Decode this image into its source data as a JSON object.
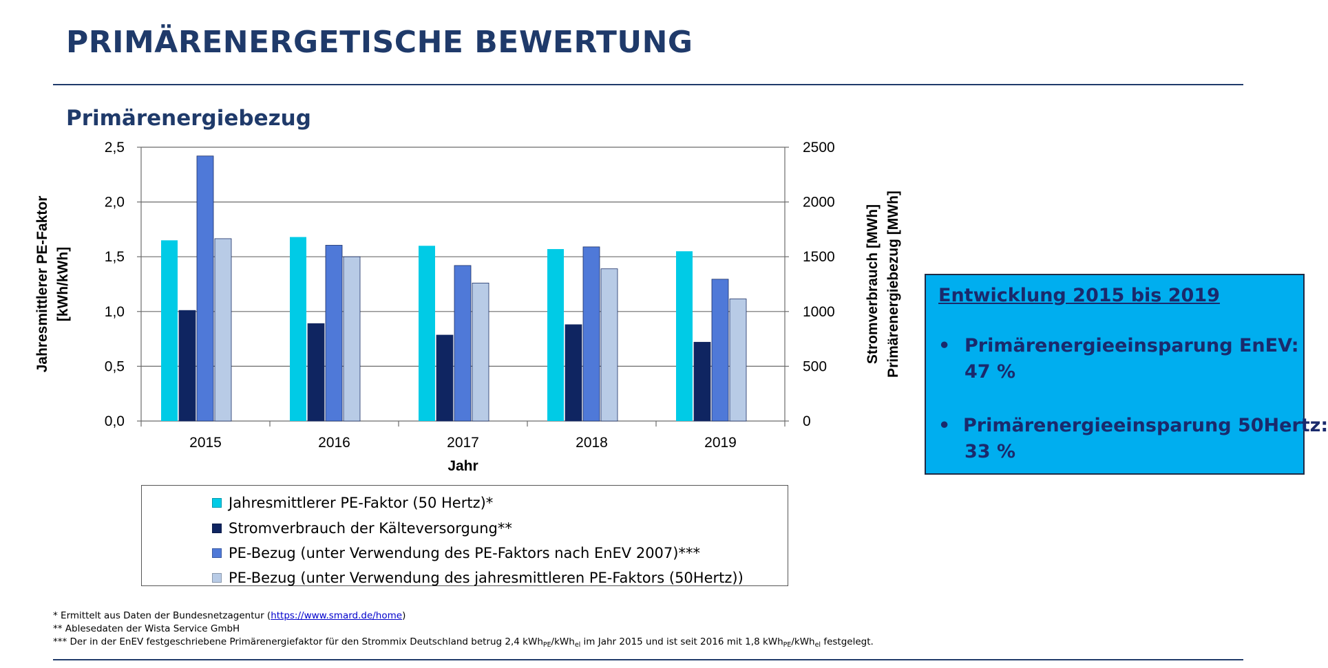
{
  "header": {
    "title": "PRIMÄRENERGETISCHE BEWERTUNG",
    "subtitle": "Primärenergiebezug"
  },
  "chart_data": {
    "type": "bar",
    "xlabel": "Jahr",
    "ylabel_left": "Jahresmittlerer PE-Faktor",
    "ylabel_left_unit": "[kWh_PE/kWh_el]",
    "ylabel_right_1": "Stromverbrauch [MWh_el]",
    "ylabel_right_2": "Primärenergiebezug [MWh_PE]",
    "ylim_left": [
      0,
      2.5
    ],
    "ylim_right": [
      0,
      2500
    ],
    "yticks_left": [
      "0,0",
      "0,5",
      "1,0",
      "1,5",
      "2,0",
      "2,5"
    ],
    "yticks_right": [
      "0",
      "500",
      "1000",
      "1500",
      "2000",
      "2500"
    ],
    "categories": [
      "2015",
      "2016",
      "2017",
      "2018",
      "2019"
    ],
    "grid": true,
    "legend_position": "bottom",
    "series": [
      {
        "name": "Jahresmittlerer PE-Faktor (50 Hertz)*",
        "axis": "left",
        "color": "#00cbe6",
        "values": [
          1.65,
          1.68,
          1.6,
          1.57,
          1.55
        ]
      },
      {
        "name": "Stromverbrauch der Kälteversorgung**",
        "axis": "right",
        "color": "#0f2561",
        "values": [
          1010,
          890,
          785,
          880,
          720
        ]
      },
      {
        "name": "PE-Bezug (unter Verwendung des PE-Faktors nach EnEV 2007)***",
        "axis": "right",
        "color": "#4f79d8",
        "values": [
          2420,
          1605,
          1420,
          1590,
          1295
        ]
      },
      {
        "name": "PE-Bezug (unter Verwendung des jahresmittleren PE-Faktors (50Hertz))",
        "axis": "right",
        "color": "#b8cbe6",
        "values": [
          1665,
          1500,
          1260,
          1390,
          1115
        ]
      }
    ]
  },
  "infobox": {
    "heading": "Entwicklung 2015 bis 2019",
    "bullets": [
      {
        "label": "Primärenergieeinsparung EnEV:",
        "value": "47 %"
      },
      {
        "label": "Primärenergieeinsparung 50Hertz:",
        "value": "33 %"
      }
    ],
    "bullet_char": "•"
  },
  "footnotes": {
    "fn1_prefix": "* Ermittelt aus Daten der Bundesnetzagentur (",
    "fn1_link": "https://www.smard.de/home",
    "fn1_suffix": ")",
    "fn2": "** Ablesedaten der Wista Service GmbH",
    "fn3_part1": "*** Der in der EnEV festgeschriebene Primärenergiefaktor  für den Strommix  Deutschland betrug 2,4 kWh",
    "fn3_sub_pe": "PE",
    "fn3_slash": "/kWh",
    "fn3_sub_el": "el",
    "fn3_part2": " im Jahr 2015 und ist seit 2016 mit 1,8 kWh",
    "fn3_part3": " festgelegt."
  }
}
